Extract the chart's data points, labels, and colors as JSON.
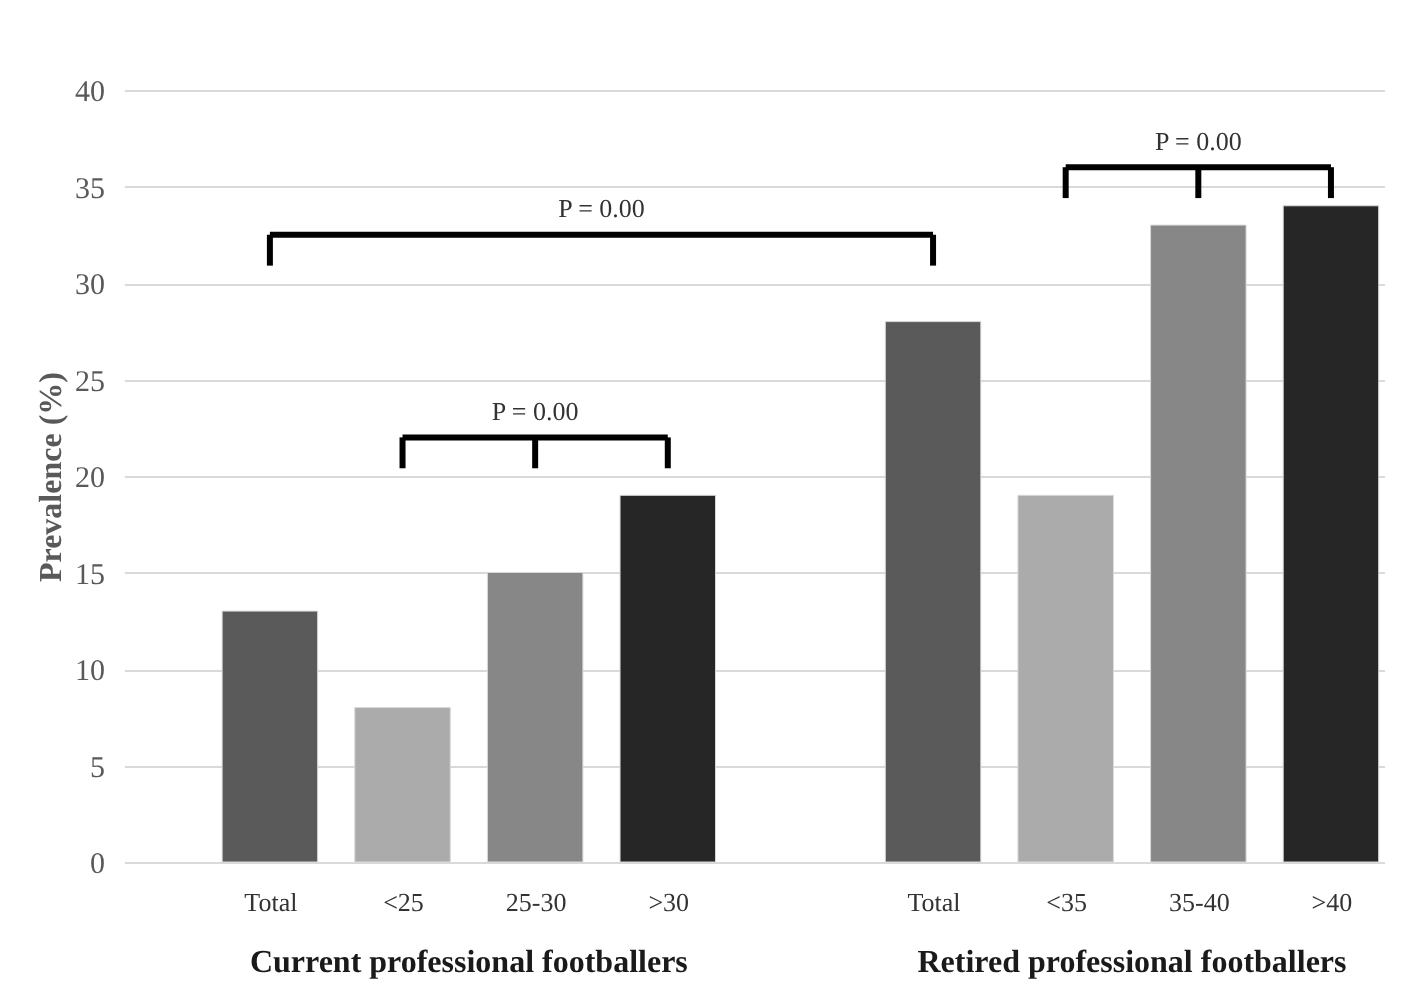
{
  "chart_data": {
    "type": "bar",
    "categories": [
      "Total",
      "<25",
      "25-30",
      ">30",
      null,
      "Total",
      "<35",
      "35-40",
      ">40"
    ],
    "values": [
      13,
      8,
      15,
      19,
      null,
      28,
      19,
      33,
      34
    ],
    "colors": [
      "#5a5a5a",
      "#ababab",
      "#878787",
      "#262626",
      null,
      "#5a5a5a",
      "#ababab",
      "#878787",
      "#262626"
    ],
    "ylabel": "Prevalence (%)",
    "ylim": [
      0,
      40
    ],
    "yticks": [
      0,
      5,
      10,
      15,
      20,
      25,
      30,
      35,
      40
    ],
    "grid": "y",
    "annotations": [
      "P = 0.00",
      "P = 0.00",
      "P = 0.00",
      "Current professional footballers",
      "Retired professional footballers"
    ]
  }
}
